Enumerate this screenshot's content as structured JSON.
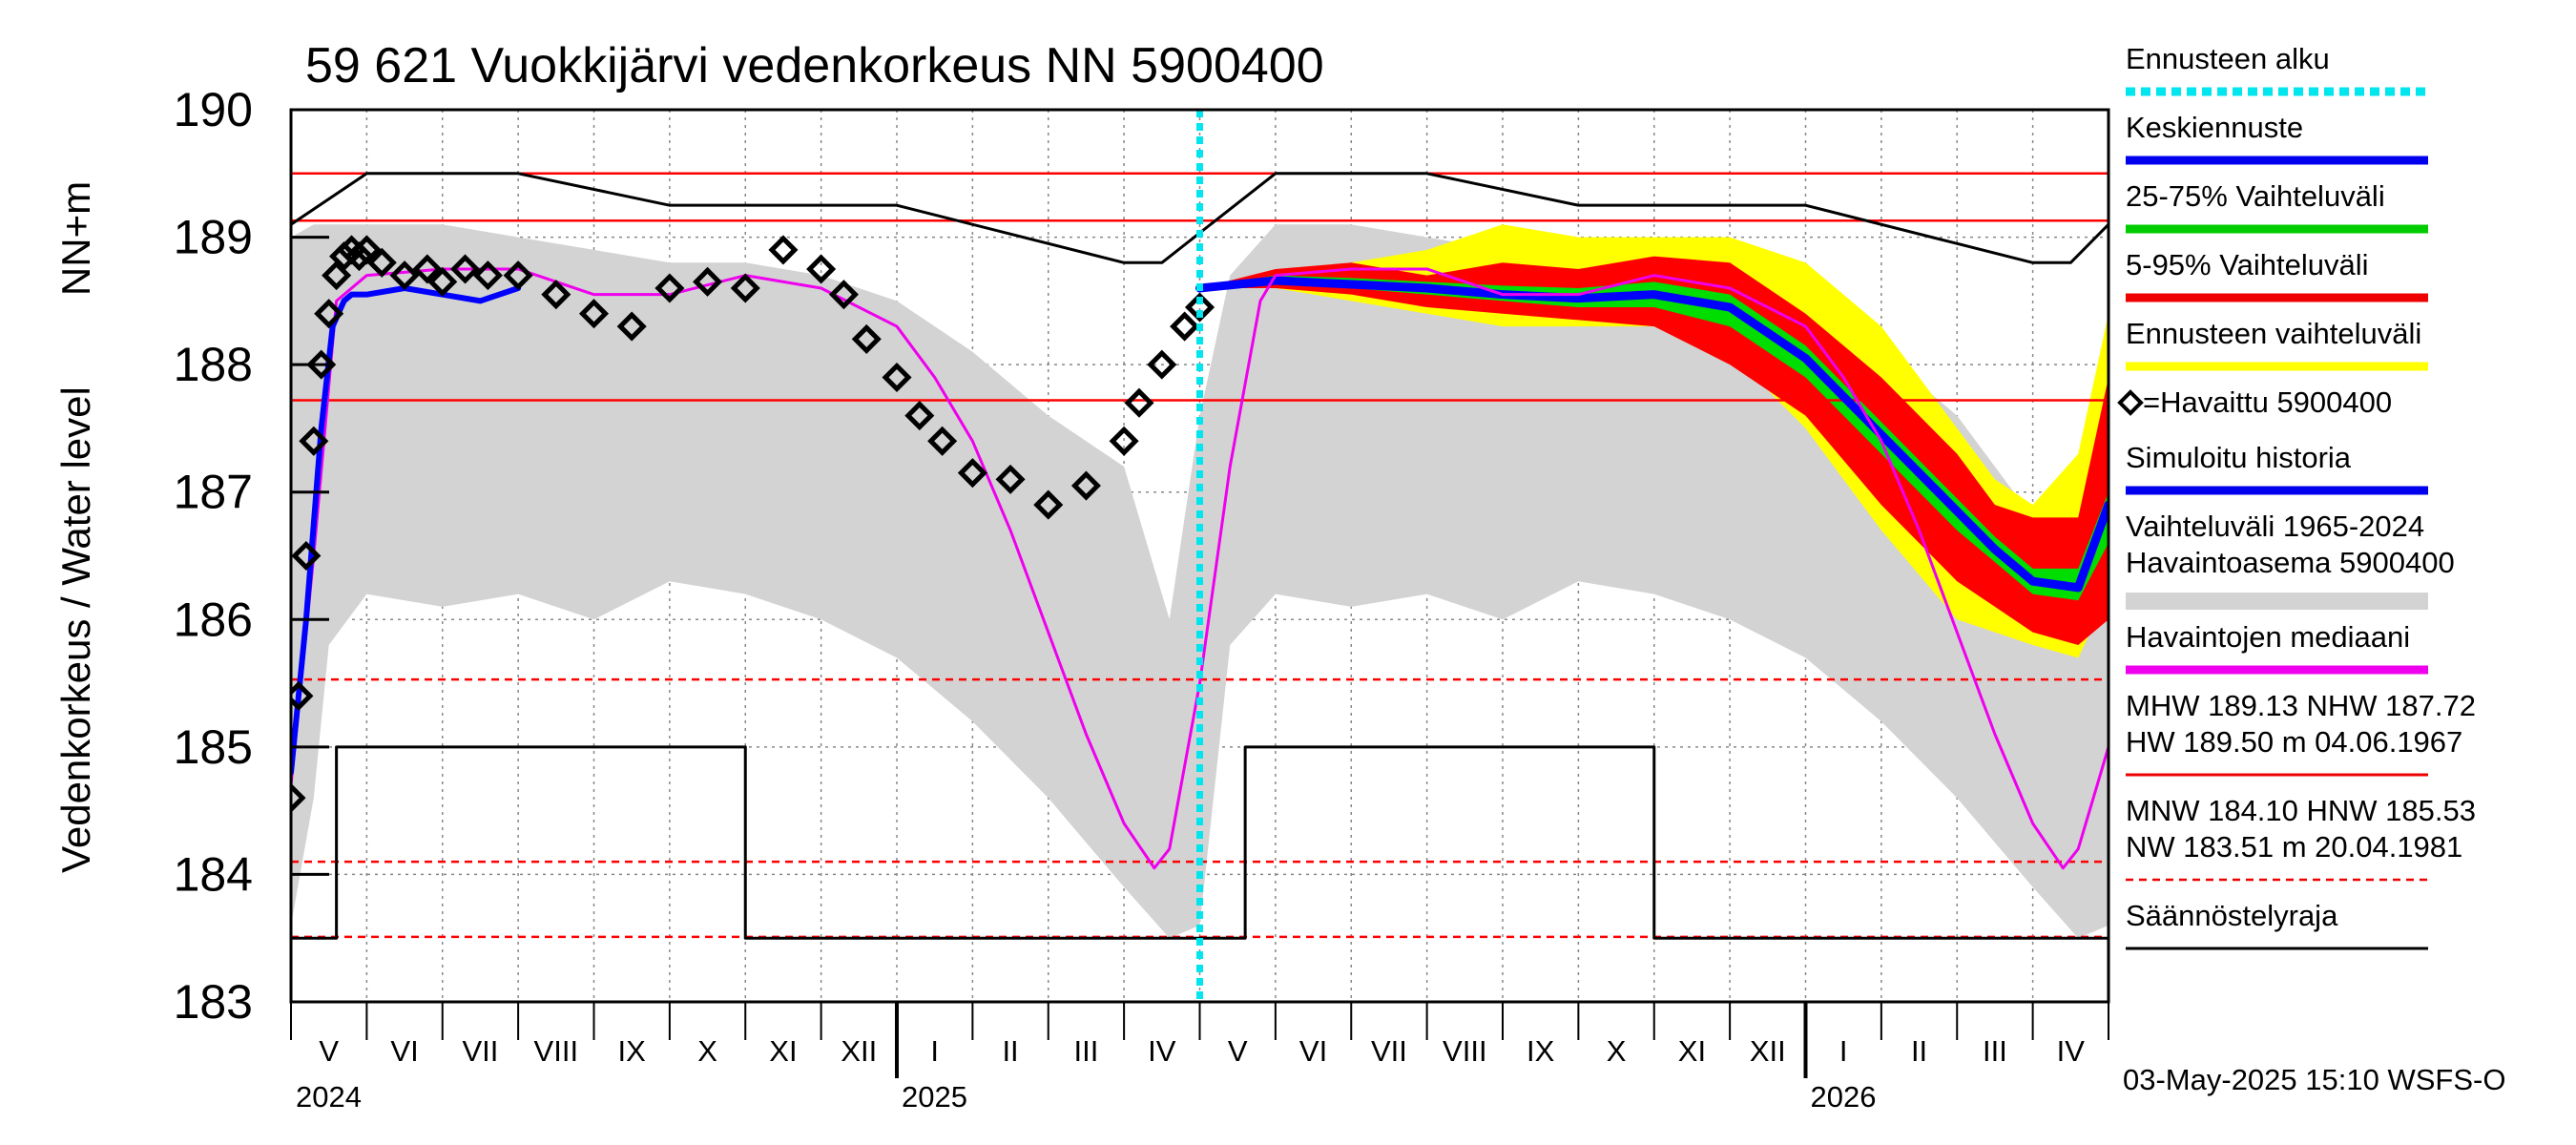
{
  "chart_data": {
    "type": "line",
    "title": "59 621 Vuokkijärvi vedenkorkeus NN 5900400",
    "ylabel_main": "Vedenkorkeus / Water level",
    "ylabel_unit": "NN+m",
    "ylim": [
      183,
      190
    ],
    "yticks": [
      "183",
      "184",
      "185",
      "186",
      "187",
      "188",
      "189",
      "190"
    ],
    "x_months": [
      "V",
      "VI",
      "VII",
      "VIII",
      "IX",
      "X",
      "XI",
      "XII",
      "I",
      "II",
      "III",
      "IV",
      "V",
      "VI",
      "VII",
      "VIII",
      "IX",
      "X",
      "XI",
      "XII",
      "I",
      "II",
      "III",
      "IV"
    ],
    "x_years": [
      {
        "label": "2024",
        "month_index": 0
      },
      {
        "label": "2025",
        "month_index": 8
      },
      {
        "label": "2026",
        "month_index": 20
      }
    ],
    "forecast_start_month": 12,
    "grid": true,
    "reference_lines": [
      {
        "name": "HW",
        "value": 189.5,
        "style": "solid",
        "color": "#ff0000"
      },
      {
        "name": "MHW",
        "value": 189.13,
        "style": "solid",
        "color": "#ff0000"
      },
      {
        "name": "NHW",
        "value": 187.72,
        "style": "solid",
        "color": "#ff0000"
      },
      {
        "name": "HNW",
        "value": 185.53,
        "style": "dashed",
        "color": "#ff0000"
      },
      {
        "name": "MNW",
        "value": 184.1,
        "style": "dashed",
        "color": "#ff0000"
      },
      {
        "name": "NW",
        "value": 183.51,
        "style": "dashed",
        "color": "#ff0000"
      }
    ],
    "series": [
      {
        "name": "Vaihteluväli 1965-2024 Havaintoasema 5900400",
        "kind": "band",
        "color": "#d3d3d3",
        "x": [
          0,
          0.3,
          0.5,
          1,
          2,
          3,
          4,
          5,
          6,
          7,
          8,
          9,
          10,
          11,
          11.6,
          12,
          12.4,
          13,
          14,
          15,
          16,
          17,
          18,
          19,
          20,
          21,
          22,
          23,
          23.6,
          24
        ],
        "upper": [
          189.0,
          189.1,
          189.1,
          189.1,
          189.1,
          189.0,
          188.9,
          188.8,
          188.8,
          188.7,
          188.5,
          188.1,
          187.6,
          187.2,
          186.0,
          187.6,
          188.7,
          189.1,
          189.1,
          189.0,
          188.9,
          188.8,
          188.8,
          188.7,
          188.5,
          188.1,
          187.6,
          186.8,
          186.2,
          187.4
        ],
        "lower": [
          183.6,
          184.6,
          185.8,
          186.2,
          186.1,
          186.2,
          186.0,
          186.3,
          186.2,
          186.0,
          185.7,
          185.2,
          184.6,
          183.9,
          183.5,
          183.6,
          185.8,
          186.2,
          186.1,
          186.2,
          186.0,
          186.3,
          186.2,
          186.0,
          185.7,
          185.2,
          184.6,
          183.9,
          183.5,
          183.6
        ]
      },
      {
        "name": "Ennusteen vaihteluväli",
        "kind": "band",
        "color": "#ffff00",
        "x": [
          12,
          13,
          14,
          15,
          16,
          17,
          18,
          19,
          20,
          21,
          22,
          22.5,
          23,
          23.6,
          24
        ],
        "upper": [
          188.6,
          188.7,
          188.8,
          188.9,
          189.1,
          189.0,
          189.0,
          189.0,
          188.8,
          188.3,
          187.5,
          187.1,
          186.9,
          187.3,
          188.4
        ],
        "lower": [
          188.6,
          188.6,
          188.5,
          188.4,
          188.3,
          188.3,
          188.3,
          188.1,
          187.5,
          186.7,
          186.0,
          185.9,
          185.8,
          185.7,
          186.2
        ]
      },
      {
        "name": "5-95% Vaihteluväli",
        "kind": "band",
        "color": "#ff0000",
        "x": [
          12,
          13,
          14,
          15,
          16,
          17,
          18,
          19,
          20,
          21,
          22,
          22.5,
          23,
          23.6,
          24
        ],
        "upper": [
          188.6,
          188.75,
          188.8,
          188.7,
          188.8,
          188.75,
          188.85,
          188.8,
          188.4,
          187.9,
          187.3,
          186.9,
          186.8,
          186.8,
          187.9
        ],
        "lower": [
          188.6,
          188.6,
          188.55,
          188.45,
          188.4,
          188.35,
          188.3,
          188.0,
          187.6,
          186.9,
          186.3,
          186.1,
          185.9,
          185.8,
          186.0
        ]
      },
      {
        "name": "25-75% Vaihteluväli",
        "kind": "band",
        "color": "#00dd00",
        "x": [
          12,
          13,
          14,
          15,
          16,
          17,
          18,
          19,
          20,
          21,
          22,
          22.5,
          23,
          23.6,
          24
        ],
        "upper": [
          188.6,
          188.7,
          188.68,
          188.65,
          188.62,
          188.6,
          188.65,
          188.55,
          188.15,
          187.55,
          186.95,
          186.65,
          186.4,
          186.4,
          187.0
        ],
        "lower": [
          188.6,
          188.65,
          188.6,
          188.55,
          188.5,
          188.45,
          188.45,
          188.3,
          187.9,
          187.3,
          186.7,
          186.45,
          186.2,
          186.15,
          186.6
        ]
      },
      {
        "name": "Keskiennuste",
        "kind": "line",
        "color": "#0000ff",
        "width": 9,
        "x": [
          12,
          13,
          14,
          15,
          16,
          17,
          18,
          19,
          20,
          21,
          22,
          22.5,
          23,
          23.6,
          24
        ],
        "y": [
          188.6,
          188.66,
          188.63,
          188.6,
          188.55,
          188.52,
          188.55,
          188.45,
          188.05,
          187.45,
          186.85,
          186.55,
          186.3,
          186.25,
          186.9
        ]
      },
      {
        "name": "Havaintojen mediaani",
        "kind": "line",
        "color": "#ee00ee",
        "width": 3,
        "x": [
          0,
          0.3,
          0.6,
          1,
          2,
          3,
          4,
          5,
          6,
          7,
          8,
          8.5,
          9,
          9.5,
          10,
          10.5,
          11,
          11.4,
          11.6,
          12,
          12.4,
          12.8,
          13,
          14,
          15,
          16,
          17,
          18,
          19,
          20,
          20.5,
          21,
          21.5,
          22,
          22.5,
          23,
          23.4,
          23.6,
          24
        ],
        "y": [
          184.7,
          186.5,
          188.5,
          188.7,
          188.75,
          188.75,
          188.55,
          188.55,
          188.7,
          188.6,
          188.3,
          187.9,
          187.4,
          186.7,
          185.9,
          185.1,
          184.4,
          184.05,
          184.2,
          185.5,
          187.2,
          188.5,
          188.7,
          188.75,
          188.75,
          188.55,
          188.55,
          188.7,
          188.6,
          188.3,
          187.9,
          187.4,
          186.7,
          185.9,
          185.1,
          184.4,
          184.05,
          184.2,
          185.0
        ]
      },
      {
        "name": "Simuloitu historia",
        "kind": "line",
        "color": "#0000ff",
        "width": 6,
        "x": [
          0,
          0.2,
          0.4,
          0.55,
          0.7,
          0.8,
          1,
          1.5,
          2,
          2.5,
          3
        ],
        "y": [
          184.8,
          186.0,
          187.5,
          188.3,
          188.5,
          188.55,
          188.55,
          188.6,
          188.55,
          188.5,
          188.6
        ]
      },
      {
        "name": "=Havaittu 5900400",
        "kind": "markers",
        "color": "#000000",
        "x": [
          0,
          0.1,
          0.2,
          0.3,
          0.4,
          0.5,
          0.6,
          0.7,
          0.8,
          0.9,
          1,
          1.2,
          1.5,
          1.8,
          2,
          2.3,
          2.6,
          3,
          3.5,
          4,
          4.5,
          5,
          5.5,
          6,
          6.5,
          7,
          7.3,
          7.6,
          8,
          8.3,
          8.6,
          9,
          9.5,
          10,
          10.5,
          11,
          11.2,
          11.5,
          11.8,
          12
        ],
        "y": [
          184.6,
          185.4,
          186.5,
          187.4,
          188.0,
          188.4,
          188.7,
          188.85,
          188.9,
          188.85,
          188.9,
          188.8,
          188.7,
          188.75,
          188.65,
          188.75,
          188.7,
          188.7,
          188.55,
          188.4,
          188.3,
          188.6,
          188.65,
          188.6,
          188.9,
          188.75,
          188.55,
          188.2,
          187.9,
          187.6,
          187.4,
          187.15,
          187.1,
          186.9,
          187.05,
          187.4,
          187.7,
          188.0,
          188.3,
          188.45
        ]
      },
      {
        "name": "Säännöstelyraja",
        "kind": "step",
        "color": "#000000",
        "width": 3,
        "x": [
          0,
          0.6,
          0.6,
          6,
          6,
          12.6,
          12.6,
          18,
          18,
          24
        ],
        "y": [
          183.5,
          183.5,
          185.0,
          185.0,
          183.5,
          183.5,
          185.0,
          185.0,
          183.5,
          183.5
        ]
      },
      {
        "name": "upper_regulation",
        "kind": "line",
        "color": "#000000",
        "width": 3,
        "x": [
          0,
          1,
          3,
          5,
          8,
          11,
          11.5,
          13,
          15,
          17,
          20,
          23,
          23.5,
          24
        ],
        "y": [
          189.1,
          189.5,
          189.5,
          189.25,
          189.25,
          188.8,
          188.8,
          189.5,
          189.5,
          189.25,
          189.25,
          188.8,
          188.8,
          189.1
        ]
      }
    ]
  },
  "legend": {
    "items": [
      {
        "label": "Ennusteen alku",
        "color": "#00e5ee",
        "style": "dotted"
      },
      {
        "label": "Keskiennuste",
        "color": "#0000ee",
        "style": "solid"
      },
      {
        "label": "25-75% Vaihteluväli",
        "color": "#00cc00",
        "style": "solid"
      },
      {
        "label": "5-95% Vaihteluväli",
        "color": "#ee0000",
        "style": "solid"
      },
      {
        "label": "Ennusteen vaihteluväli",
        "color": "#ffff00",
        "style": "solid"
      },
      {
        "label": "=Havaittu 5900400",
        "color": "#000000",
        "style": "marker"
      },
      {
        "label": "Simuloitu historia",
        "color": "#0000ee",
        "style": "solid"
      },
      {
        "label": "Vaihteluväli 1965-2024",
        "label2": " Havaintoasema 5900400",
        "color": "#d3d3d3",
        "style": "solid"
      },
      {
        "label": "Havaintojen mediaani",
        "color": "#ee00ee",
        "style": "solid"
      },
      {
        "label": "MHW 189.13 NHW 187.72",
        "label2": "HW 189.50 m 04.06.1967",
        "color": "#ee0000",
        "style": "thin"
      },
      {
        "label": "MNW 184.10 HNW 185.53",
        "label2": "NW 183.51 m 20.04.1981",
        "color": "#ee0000",
        "style": "dashed"
      },
      {
        "label": "Säännöstelyraja",
        "color": "#000000",
        "style": "thin"
      }
    ]
  },
  "footer": "03-May-2025 15:10 WSFS-O"
}
